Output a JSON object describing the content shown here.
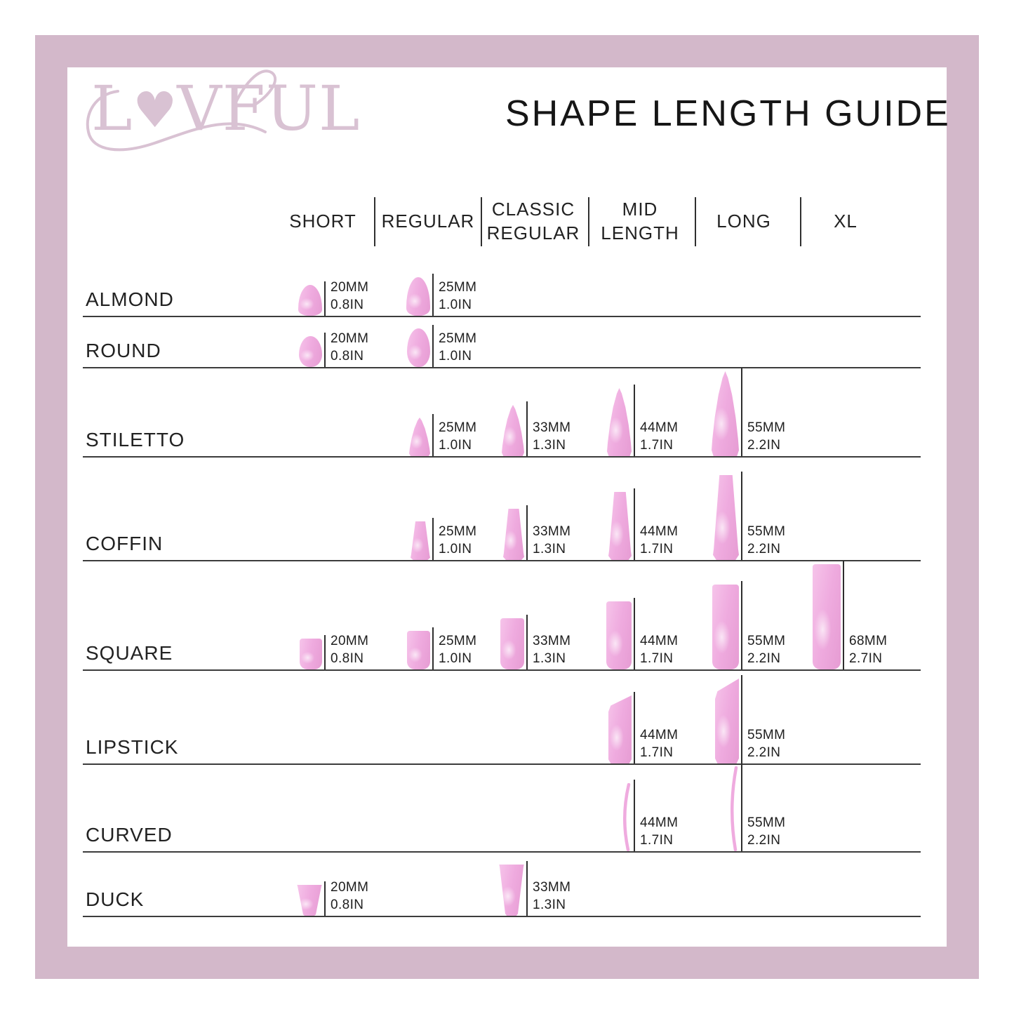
{
  "page": {
    "title": "SHAPE LENGTH GUIDE"
  },
  "logo": {
    "part1": "L",
    "heart": "♥",
    "part2": "VFUL",
    "brand": "LOVFUL"
  },
  "colors": {
    "frame": "#d3b8ca",
    "logo_pink": "#d9c2d3",
    "nail_light": "#f6c4ea",
    "nail_mid": "#efabdf",
    "nail_dark": "#e69cd3",
    "text": "#1e1e1e",
    "line": "#3c3c3c"
  },
  "columns": [
    {
      "label_lines": [
        "SHORT"
      ]
    },
    {
      "label_lines": [
        "REGULAR"
      ]
    },
    {
      "label_lines": [
        "CLASSIC",
        "REGULAR"
      ]
    },
    {
      "label_lines": [
        "MID",
        "LENGTH"
      ]
    },
    {
      "label_lines": [
        "LONG"
      ]
    },
    {
      "label_lines": [
        "XL"
      ]
    }
  ],
  "rows": [
    {
      "label": "ALMOND",
      "shape": "almond",
      "cells": [
        {
          "col": 0,
          "length": "SHORT",
          "mm": "20MM",
          "inch": "0.8IN"
        },
        {
          "col": 1,
          "length": "REGULAR",
          "mm": "25MM",
          "inch": "1.0IN"
        }
      ]
    },
    {
      "label": "ROUND",
      "shape": "round",
      "cells": [
        {
          "col": 0,
          "length": "SHORT",
          "mm": "20MM",
          "inch": "0.8IN"
        },
        {
          "col": 1,
          "length": "REGULAR",
          "mm": "25MM",
          "inch": "1.0IN"
        }
      ]
    },
    {
      "label": "STILETTO",
      "shape": "stiletto",
      "cells": [
        {
          "col": 1,
          "length": "REGULAR",
          "mm": "25MM",
          "inch": "1.0IN"
        },
        {
          "col": 2,
          "length": "CLASSIC REGULAR",
          "mm": "33MM",
          "inch": "1.3IN"
        },
        {
          "col": 3,
          "length": "MID LENGTH",
          "mm": "44MM",
          "inch": "1.7IN"
        },
        {
          "col": 4,
          "length": "LONG",
          "mm": "55MM",
          "inch": "2.2IN"
        }
      ]
    },
    {
      "label": "COFFIN",
      "shape": "coffin",
      "cells": [
        {
          "col": 1,
          "length": "REGULAR",
          "mm": "25MM",
          "inch": "1.0IN"
        },
        {
          "col": 2,
          "length": "CLASSIC REGULAR",
          "mm": "33MM",
          "inch": "1.3IN"
        },
        {
          "col": 3,
          "length": "MID LENGTH",
          "mm": "44MM",
          "inch": "1.7IN"
        },
        {
          "col": 4,
          "length": "LONG",
          "mm": "55MM",
          "inch": "2.2IN"
        }
      ]
    },
    {
      "label": "SQUARE",
      "shape": "square",
      "cells": [
        {
          "col": 0,
          "length": "SHORT",
          "mm": "20MM",
          "inch": "0.8IN"
        },
        {
          "col": 1,
          "length": "REGULAR",
          "mm": "25MM",
          "inch": "1.0IN"
        },
        {
          "col": 2,
          "length": "CLASSIC REGULAR",
          "mm": "33MM",
          "inch": "1.3IN"
        },
        {
          "col": 3,
          "length": "MID LENGTH",
          "mm": "44MM",
          "inch": "1.7IN"
        },
        {
          "col": 4,
          "length": "LONG",
          "mm": "55MM",
          "inch": "2.2IN"
        },
        {
          "col": 5,
          "length": "XL",
          "mm": "68MM",
          "inch": "2.7IN"
        }
      ]
    },
    {
      "label": "LIPSTICK",
      "shape": "lipstick",
      "cells": [
        {
          "col": 3,
          "length": "MID LENGTH",
          "mm": "44MM",
          "inch": "1.7IN"
        },
        {
          "col": 4,
          "length": "LONG",
          "mm": "55MM",
          "inch": "2.2IN"
        }
      ]
    },
    {
      "label": "CURVED",
      "shape": "curved",
      "cells": [
        {
          "col": 3,
          "length": "MID LENGTH",
          "mm": "44MM",
          "inch": "1.7IN"
        },
        {
          "col": 4,
          "length": "LONG",
          "mm": "55MM",
          "inch": "2.2IN"
        }
      ]
    },
    {
      "label": "DUCK",
      "shape": "duck",
      "cells": [
        {
          "col": 0,
          "length": "SHORT",
          "mm": "20MM",
          "inch": "0.8IN"
        },
        {
          "col": 2,
          "length": "CLASSIC REGULAR",
          "mm": "33MM",
          "inch": "1.3IN"
        }
      ]
    }
  ]
}
